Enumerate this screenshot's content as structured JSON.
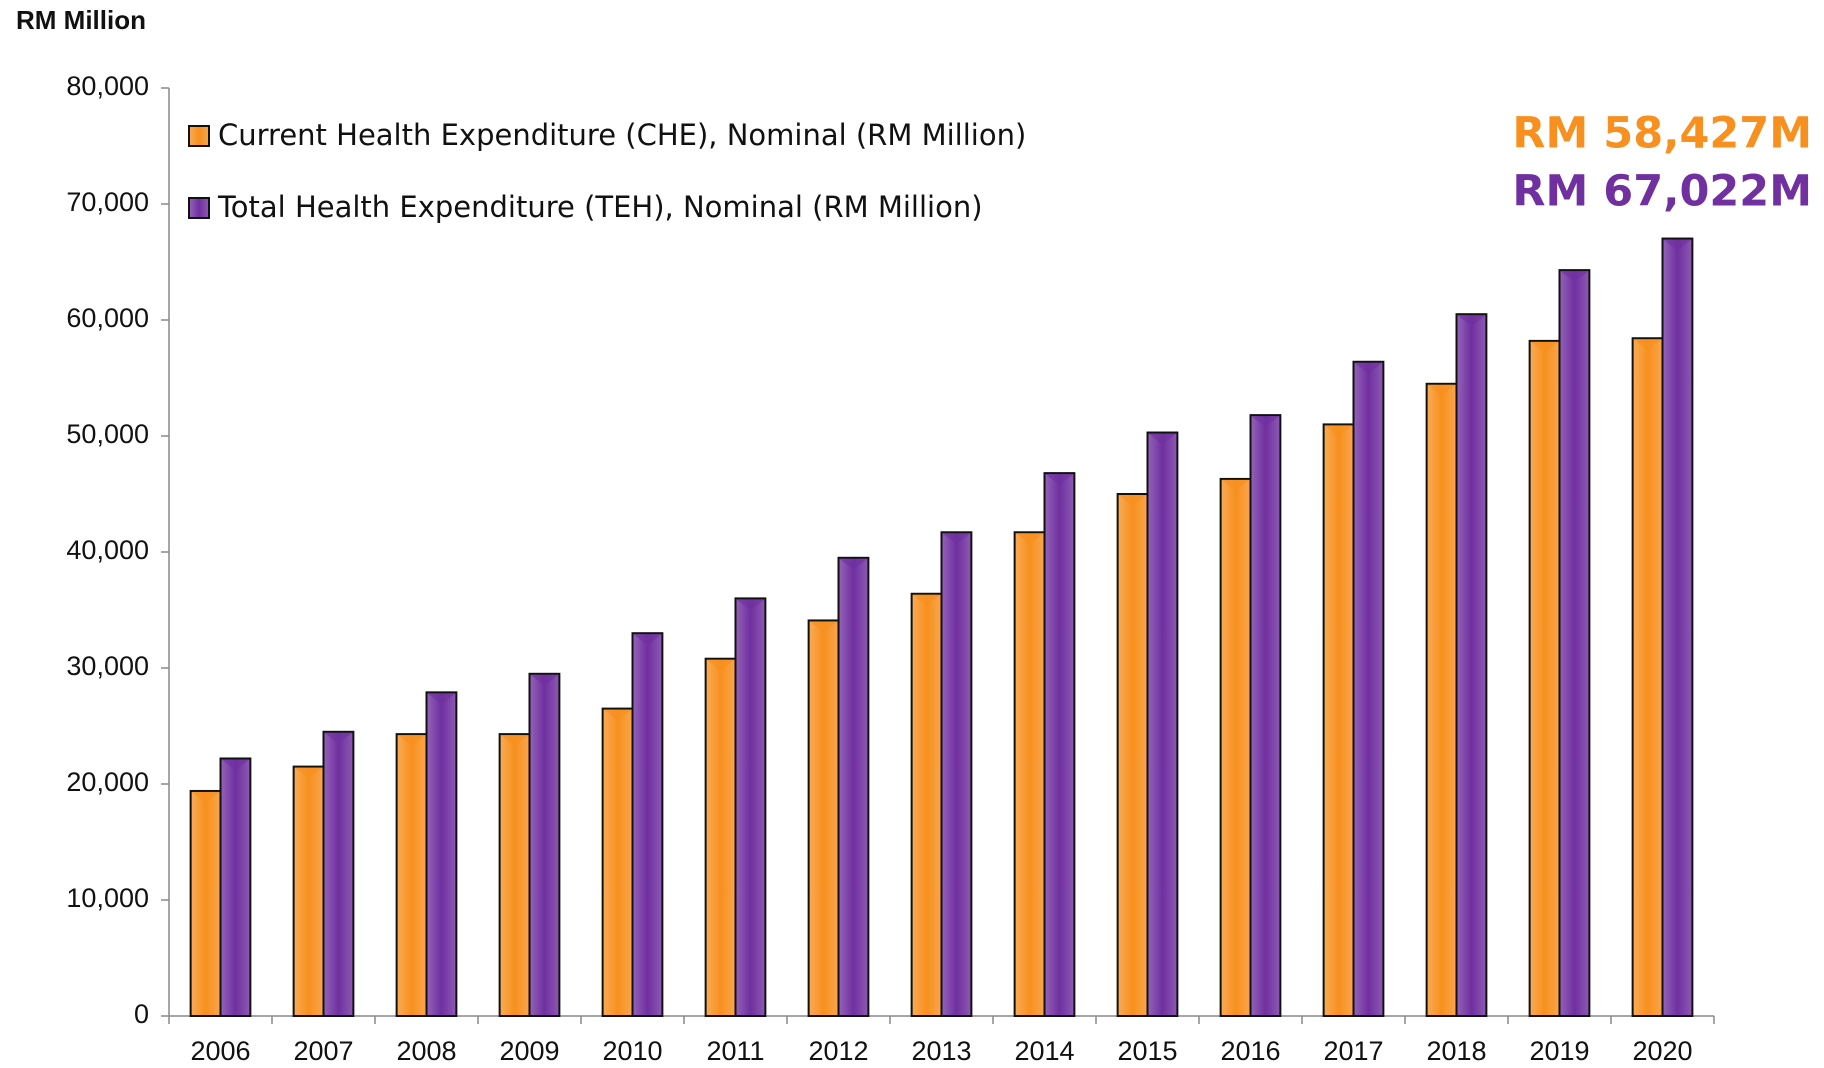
{
  "chart_data": {
    "type": "bar",
    "y_label": "RM Million",
    "categories": [
      "2006",
      "2007",
      "2008",
      "2009",
      "2010",
      "2011",
      "2012",
      "2013",
      "2014",
      "2015",
      "2016",
      "2017",
      "2018",
      "2019",
      "2020"
    ],
    "series": [
      {
        "name": "Current Health Expenditure (CHE), Nominal (RM Million)",
        "color": "#f7901e",
        "values": [
          19400,
          21500,
          24300,
          24300,
          26500,
          30800,
          34100,
          36400,
          41700,
          45000,
          46300,
          51000,
          54500,
          58200,
          58427
        ]
      },
      {
        "name": "Total Health Expenditure (TEH), Nominal (RM Million)",
        "color": "#7030a0",
        "values": [
          22200,
          24500,
          27900,
          29500,
          33000,
          36000,
          39500,
          41700,
          46800,
          50300,
          51800,
          56400,
          60500,
          64300,
          67022
        ]
      }
    ],
    "annotations": [
      {
        "text": "RM 58,427M",
        "color": "#f7901e"
      },
      {
        "text": "RM 67,022M",
        "color": "#7030a0"
      }
    ],
    "ylim": [
      0,
      80000
    ],
    "yticks": [
      0,
      {
        "value": 10000,
        "label": "10,000"
      },
      {
        "value": 20000,
        "label": "20,000"
      },
      {
        "value": 30000,
        "label": "30,000"
      },
      {
        "value": 40000,
        "label": "40,000"
      },
      {
        "value": 50000,
        "label": "50,000"
      },
      {
        "value": 60000,
        "label": "60,000"
      },
      {
        "value": 70000,
        "label": "70,000"
      },
      {
        "value": 80000,
        "label": "80,000"
      }
    ],
    "grid": false,
    "legend": "top-left"
  }
}
